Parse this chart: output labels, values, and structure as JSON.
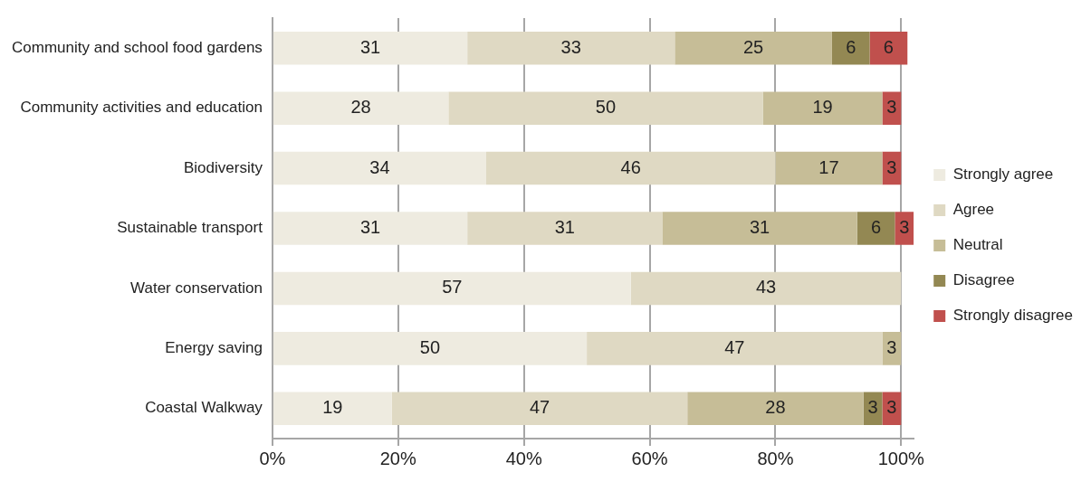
{
  "chart_data": {
    "type": "bar",
    "orientation": "horizontal",
    "stacked": true,
    "categories": [
      "Community and school food gardens",
      "Community activities and education",
      "Biodiversity",
      "Sustainable transport",
      "Water conservation",
      "Energy saving",
      "Coastal Walkway"
    ],
    "series": [
      {
        "name": "Strongly agree",
        "color": "#eeebe0",
        "values": [
          31,
          28,
          34,
          31,
          57,
          50,
          19
        ]
      },
      {
        "name": "Agree",
        "color": "#dfd9c3",
        "values": [
          33,
          50,
          46,
          31,
          43,
          47,
          47
        ]
      },
      {
        "name": "Neutral",
        "color": "#c6bd97",
        "values": [
          25,
          19,
          17,
          31,
          null,
          3,
          28
        ]
      },
      {
        "name": "Disagree",
        "color": "#938853",
        "values": [
          6,
          null,
          null,
          6,
          null,
          null,
          3
        ]
      },
      {
        "name": "Strongly disagree",
        "color": "#c0504d",
        "values": [
          6,
          3,
          3,
          3,
          null,
          null,
          3
        ]
      }
    ],
    "xlim": [
      0,
      102
    ],
    "xticks": [
      {
        "value": 0,
        "label": "0%"
      },
      {
        "value": 20,
        "label": "20%"
      },
      {
        "value": 40,
        "label": "40%"
      },
      {
        "value": 60,
        "label": "60%"
      },
      {
        "value": 80,
        "label": "80%"
      },
      {
        "value": 100,
        "label": "100%"
      }
    ],
    "grid": "x",
    "legend": "right",
    "data_labels": true
  }
}
